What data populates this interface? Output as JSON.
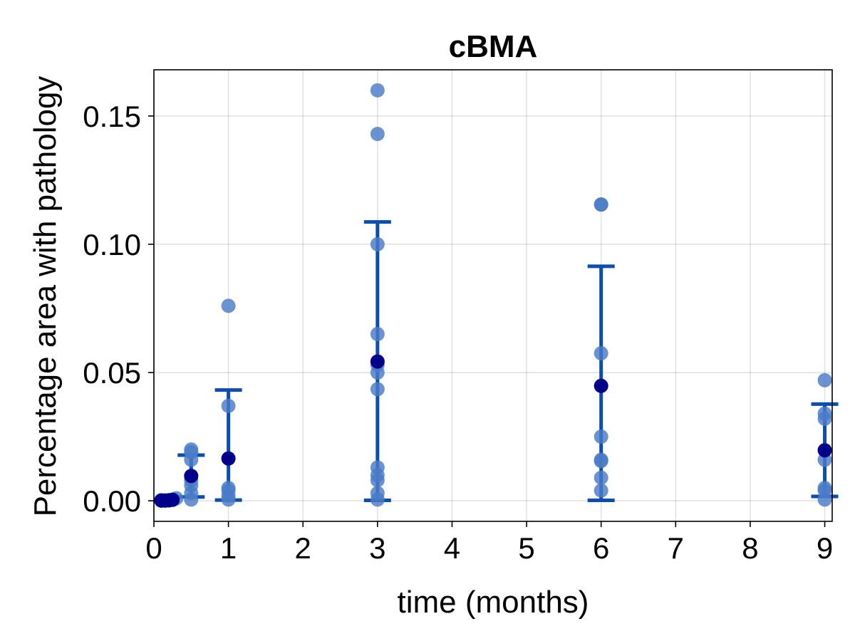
{
  "colors": {
    "point": "#4a7bc8",
    "mean": "#00008b",
    "errorbar": "#0a4fb0",
    "axis": "#000000",
    "grid": "#e0e0e0",
    "background": "#ffffff"
  },
  "chart_data": {
    "type": "scatter",
    "title": "cBMA",
    "xlabel": "time (months)",
    "ylabel": "Percentage area with pathology",
    "xlim": [
      0,
      9.1
    ],
    "ylim": [
      -0.008,
      0.168
    ],
    "xticks": [
      0,
      1,
      2,
      3,
      4,
      5,
      6,
      7,
      8,
      9
    ],
    "xtick_labels": [
      "0",
      "1",
      "2",
      "3",
      "4",
      "5",
      "6",
      "7",
      "8",
      "9"
    ],
    "yticks": [
      0.0,
      0.05,
      0.1,
      0.15
    ],
    "ytick_labels": [
      "0.00",
      "0.05",
      "0.10",
      "0.15"
    ],
    "grid": true,
    "legend": "none",
    "series": [
      {
        "kind": "samples",
        "points": [
          {
            "x": 0.1,
            "y": 0.0003
          },
          {
            "x": 0.1,
            "y": 0.0001
          },
          {
            "x": 0.15,
            "y": 0.0002
          },
          {
            "x": 0.2,
            "y": 0.0003
          },
          {
            "x": 0.25,
            "y": 0.0005
          },
          {
            "x": 0.3,
            "y": 0.001
          },
          {
            "x": 0.5,
            "y": 0.02
          },
          {
            "x": 0.5,
            "y": 0.019
          },
          {
            "x": 0.5,
            "y": 0.016
          },
          {
            "x": 0.5,
            "y": 0.008
          },
          {
            "x": 0.5,
            "y": 0.006
          },
          {
            "x": 0.5,
            "y": 0.003
          },
          {
            "x": 0.5,
            "y": 0.0005
          },
          {
            "x": 1,
            "y": 0.076
          },
          {
            "x": 1,
            "y": 0.037
          },
          {
            "x": 1,
            "y": 0.005
          },
          {
            "x": 1,
            "y": 0.004
          },
          {
            "x": 1,
            "y": 0.002
          },
          {
            "x": 1,
            "y": 0.0005
          },
          {
            "x": 3,
            "y": 0.16
          },
          {
            "x": 3,
            "y": 0.143
          },
          {
            "x": 3,
            "y": 0.1
          },
          {
            "x": 3,
            "y": 0.065
          },
          {
            "x": 3,
            "y": 0.053
          },
          {
            "x": 3,
            "y": 0.05
          },
          {
            "x": 3,
            "y": 0.0435
          },
          {
            "x": 3,
            "y": 0.013
          },
          {
            "x": 3,
            "y": 0.01
          },
          {
            "x": 3,
            "y": 0.008
          },
          {
            "x": 3,
            "y": 0.003
          },
          {
            "x": 3,
            "y": 0.0005
          },
          {
            "x": 6,
            "y": 0.1155
          },
          {
            "x": 6,
            "y": 0.1155
          },
          {
            "x": 6,
            "y": 0.0575
          },
          {
            "x": 6,
            "y": 0.025
          },
          {
            "x": 6,
            "y": 0.016
          },
          {
            "x": 6,
            "y": 0.0155
          },
          {
            "x": 6,
            "y": 0.009
          },
          {
            "x": 6,
            "y": 0.004
          },
          {
            "x": 9,
            "y": 0.047
          },
          {
            "x": 9,
            "y": 0.034
          },
          {
            "x": 9,
            "y": 0.032
          },
          {
            "x": 9,
            "y": 0.016
          },
          {
            "x": 9,
            "y": 0.005
          },
          {
            "x": 9,
            "y": 0.004
          },
          {
            "x": 9,
            "y": 0.0005
          }
        ]
      },
      {
        "kind": "mean_with_errorbars",
        "points": [
          {
            "x": 0.1,
            "y": 0.0001,
            "low": 0.0001,
            "high": 0.0001
          },
          {
            "x": 0.15,
            "y": 0.0001,
            "low": 0.0001,
            "high": 0.0001
          },
          {
            "x": 0.2,
            "y": 0.0002,
            "low": 0.0002,
            "high": 0.0002
          },
          {
            "x": 0.25,
            "y": 0.0004,
            "low": 0.0004,
            "high": 0.0004
          },
          {
            "x": 0.5,
            "y": 0.0097,
            "low": 0.0015,
            "high": 0.0178
          },
          {
            "x": 1,
            "y": 0.0165,
            "low": 0.0003,
            "high": 0.0432
          },
          {
            "x": 3,
            "y": 0.0543,
            "low": 0.0002,
            "high": 0.1087
          },
          {
            "x": 6,
            "y": 0.0448,
            "low": 0.0002,
            "high": 0.0914
          },
          {
            "x": 9,
            "y": 0.0197,
            "low": 0.0017,
            "high": 0.0377
          }
        ]
      }
    ]
  }
}
